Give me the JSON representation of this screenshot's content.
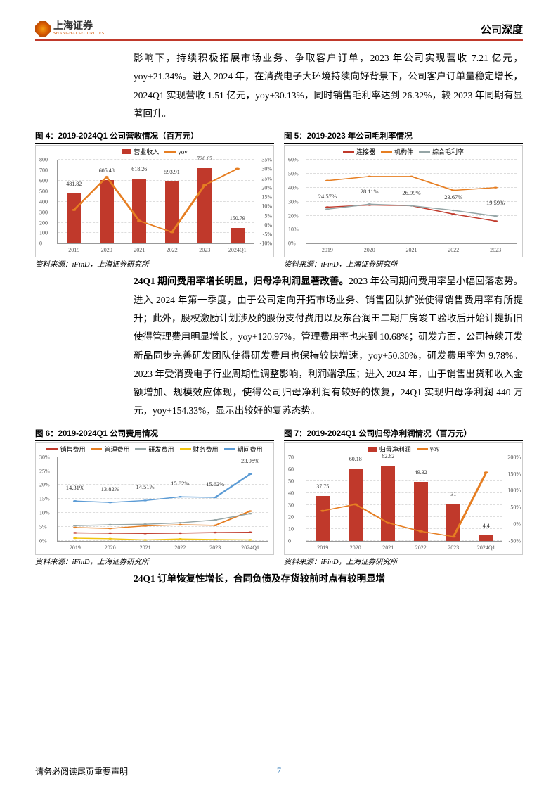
{
  "header": {
    "logo_cn": "上海证券",
    "logo_en": "SHANGHAI SECURITIES",
    "title": "公司深度"
  },
  "para1": "影响下，持续积极拓展市场业务、争取客户订单，2023 年公司实现营收 7.21 亿元，yoy+21.34%。进入 2024 年，在消费电子大环境持续向好背景下，公司客户订单量稳定增长，2024Q1 实现营收 1.51 亿元，yoy+30.13%，同时销售毛利率达到 26.32%，较 2023 年同期有显著回升。",
  "para2_lead": "24Q1 期间费用率增长明显，归母净利润显著改善。",
  "para2": "2023 年公司期间费用率呈小幅回落态势。进入 2024 年第一季度，由于公司定向开拓市场业务、销售团队扩张使得销售费用率有所提升；此外，股权激励计划涉及的股份支付费用以及东台润田二期厂房竣工验收后开始计提折旧使得管理费用明显增长，yoy+120.97%，管理费用率也来到 10.68%；研发方面，公司持续开发新品同步完善研发团队使得研发费用也保持较快增速，yoy+50.30%，研发费用率为 9.78%。2023 年受消费电子行业周期性调整影响，利润端承压；进入 2024 年，由于销售出货和收入金额增加、规模效应体现，使得公司归母净利润有较好的恢复，24Q1 实现归母净利润 440 万元，yoy+154.33%，显示出较好的复苏态势。",
  "para3_lead": "24Q1 订单恢复性增长，合同负债及存货较前时点有较明显增",
  "source": "资料来源：iFinD，上海证券研究所",
  "footer": {
    "left": "请务必阅读尾页重要声明",
    "page": "7"
  },
  "chart4": {
    "title": "图 4：2019-2024Q1 公司营收情况（百万元）",
    "legend_bar": "营业收入",
    "legend_line": "yoy",
    "bar_color": "#c0392b",
    "line_color": "#e67e22",
    "x": [
      "2019",
      "2020",
      "2021",
      "2022",
      "2023",
      "2024Q1"
    ],
    "bars": [
      481.82,
      605.48,
      618.26,
      593.91,
      720.67,
      150.79
    ],
    "yoy": [
      8,
      25.67,
      2.11,
      -3.94,
      21.34,
      30.13
    ],
    "left_ticks": [
      0,
      100,
      200,
      300,
      400,
      500,
      600,
      700,
      800
    ],
    "right_ticks": [
      -10,
      -5,
      0,
      5,
      10,
      15,
      20,
      25,
      30,
      35
    ],
    "ylim": [
      0,
      800
    ],
    "ylim_r": [
      -10,
      35
    ]
  },
  "chart5": {
    "title": "图 5：2019-2023 年公司毛利率情况",
    "legend": [
      "连接器",
      "机构件",
      "综合毛利率"
    ],
    "colors": [
      "#c0392b",
      "#e67e22",
      "#95a5a6"
    ],
    "x": [
      "2019",
      "2020",
      "2021",
      "2022",
      "2023"
    ],
    "series": [
      [
        26,
        27.5,
        27,
        21,
        16
      ],
      [
        45,
        48,
        48,
        38,
        40
      ],
      [
        24.57,
        28.11,
        26.99,
        23.67,
        19.59
      ]
    ],
    "labels": [
      [
        null,
        null,
        null,
        null,
        null
      ],
      [
        null,
        null,
        null,
        null,
        null
      ],
      [
        "24.57%",
        "28.11%",
        "26.99%",
        "23.67%",
        "19.59%"
      ]
    ],
    "ticks": [
      0,
      10,
      20,
      30,
      40,
      50,
      60
    ],
    "ylim": [
      0,
      60
    ]
  },
  "chart6": {
    "title": "图 6：2019-2024Q1 公司费用情况",
    "legend": [
      "销售费用",
      "管理费用",
      "研发费用",
      "财务费用",
      "期间费用"
    ],
    "colors": [
      "#c0392b",
      "#e67e22",
      "#95a5a6",
      "#f1c40f",
      "#5b9bd5"
    ],
    "x": [
      "2019",
      "2020",
      "2021",
      "2022",
      "2023",
      "2024Q1"
    ],
    "series": [
      [
        2.9,
        2.8,
        2.7,
        2.8,
        3.0,
        3.1
      ],
      [
        4.8,
        4.5,
        5.4,
        5.8,
        5.6,
        10.7
      ],
      [
        5.5,
        5.8,
        6.0,
        6.5,
        7.5,
        9.8
      ],
      [
        1.0,
        0.8,
        0.4,
        0.7,
        0.5,
        0.4
      ],
      [
        14.31,
        13.82,
        14.51,
        15.82,
        15.62,
        23.98
      ]
    ],
    "point_labels": [
      "14.31%",
      "13.82%",
      "14.51%",
      "15.82%",
      "15.62%",
      "23.98%"
    ],
    "ticks": [
      0,
      5,
      10,
      15,
      20,
      25,
      30
    ],
    "ylim": [
      0,
      30
    ]
  },
  "chart7": {
    "title": "图 7：2019-2024Q1 公司归母净利润情况（百万元）",
    "legend_bar": "归母净利润",
    "legend_line": "yoy",
    "bar_color": "#c0392b",
    "line_color": "#e67e22",
    "x": [
      "2019",
      "2020",
      "2021",
      "2022",
      "2023",
      "2024Q1"
    ],
    "bars": [
      37.75,
      60.18,
      62.62,
      49.32,
      31,
      4.4
    ],
    "yoy": [
      40,
      59.42,
      4.05,
      -21.24,
      -37.14,
      154.33
    ],
    "left_ticks": [
      0,
      10,
      20,
      30,
      40,
      50,
      60,
      70
    ],
    "right_ticks": [
      -50,
      0,
      50,
      100,
      150,
      200
    ],
    "ylim": [
      0,
      70
    ],
    "ylim_r": [
      -50,
      200
    ]
  }
}
